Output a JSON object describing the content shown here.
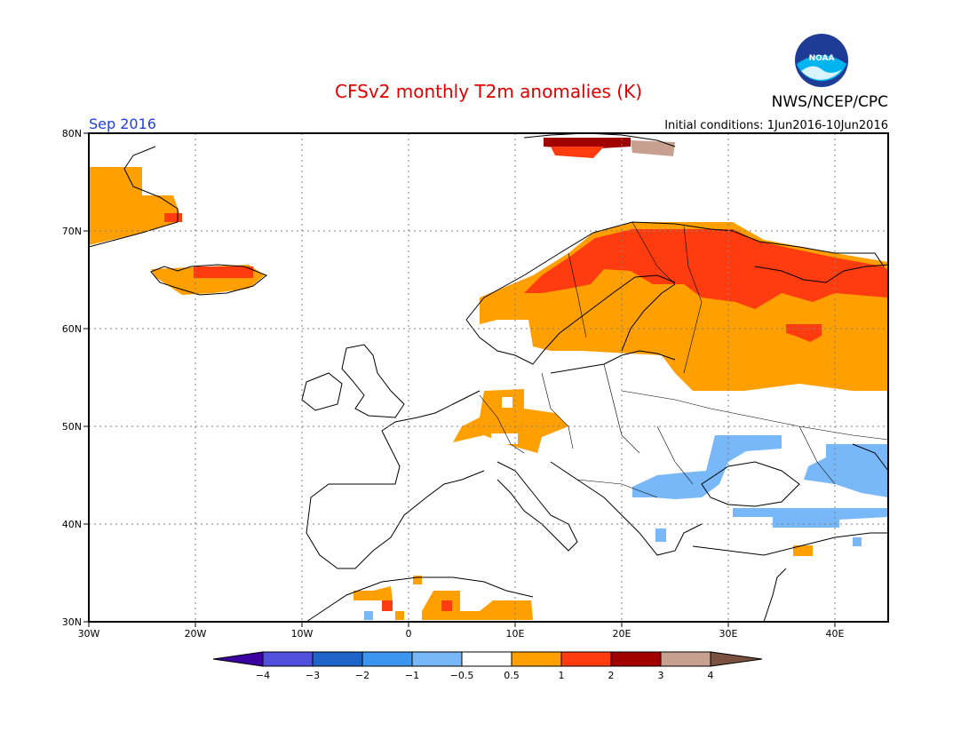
{
  "header": {
    "title": "CFSv2 monthly T2m anomalies (K)",
    "valid_month": "Sep 2016",
    "initial_conditions": "Initial conditions: 1Jun2016-10Jun2016",
    "agency": "NWS/NCEP/CPC",
    "logo_text": "NOAA"
  },
  "colors": {
    "title": "#e00000",
    "valid_month": "#2040e0",
    "cool_0_5_1": "#78b8f8",
    "warm_0_5_1": "#ffa000",
    "warm_1_2": "#ff3c10",
    "warm_2_3": "#a00000",
    "warm_3_4": "#c8a090"
  },
  "map": {
    "lon_range": [
      -30,
      45
    ],
    "lat_range": [
      30,
      80
    ],
    "lon_ticks": [
      "30W",
      "20W",
      "10W",
      "0",
      "10E",
      "20E",
      "30E",
      "40E"
    ],
    "lat_ticks": [
      "80N",
      "70N",
      "60N",
      "50N",
      "40N",
      "30N"
    ]
  },
  "legend": {
    "labels": [
      "−4",
      "−3",
      "−2",
      "−1",
      "−0.5",
      "0.5",
      "1",
      "2",
      "3",
      "4"
    ],
    "colors": [
      "#3c00a0",
      "#5050dc",
      "#1e64c8",
      "#3c96f0",
      "#78b8f8",
      "#ffffff",
      "#ffa000",
      "#ff3c10",
      "#a00000",
      "#c8a090",
      "#7a5040"
    ]
  },
  "anomaly_regions": [
    {
      "name": "Greenland east coast",
      "level": "0.5-1",
      "lon": [
        -30,
        -25
      ],
      "lat": [
        70,
        75
      ]
    },
    {
      "name": "Iceland",
      "level": "1-2",
      "lon": [
        -22,
        -13
      ],
      "lat": [
        64,
        66
      ]
    },
    {
      "name": "Scandinavia north",
      "level": "1-2",
      "lon": [
        10,
        30
      ],
      "lat": [
        63,
        71
      ]
    },
    {
      "name": "NW Russia",
      "level": "1-2",
      "lon": [
        30,
        45
      ],
      "lat": [
        62,
        68
      ]
    },
    {
      "name": "Western Russia",
      "level": "0.5-1",
      "lon": [
        25,
        45
      ],
      "lat": [
        54,
        62
      ]
    },
    {
      "name": "Germany / Benelux",
      "level": "0.5-1",
      "lon": [
        5,
        15
      ],
      "lat": [
        48,
        53
      ]
    },
    {
      "name": "Svalbard",
      "level": "2-3",
      "lon": [
        12,
        22
      ],
      "lat": [
        78,
        80
      ]
    },
    {
      "name": "Black Sea / Ukraine",
      "level": "-1--0.5",
      "lon": [
        22,
        33
      ],
      "lat": [
        42,
        48
      ]
    },
    {
      "name": "Caucasus / Caspian",
      "level": "-1--0.5",
      "lon": [
        38,
        45
      ],
      "lat": [
        42,
        47
      ]
    },
    {
      "name": "Turkey north",
      "level": "-1--0.5",
      "lon": [
        30,
        43
      ],
      "lat": [
        39,
        41
      ]
    },
    {
      "name": "North Africa",
      "level": "0.5-1",
      "lon": [
        1,
        12
      ],
      "lat": [
        30,
        33
      ]
    }
  ]
}
